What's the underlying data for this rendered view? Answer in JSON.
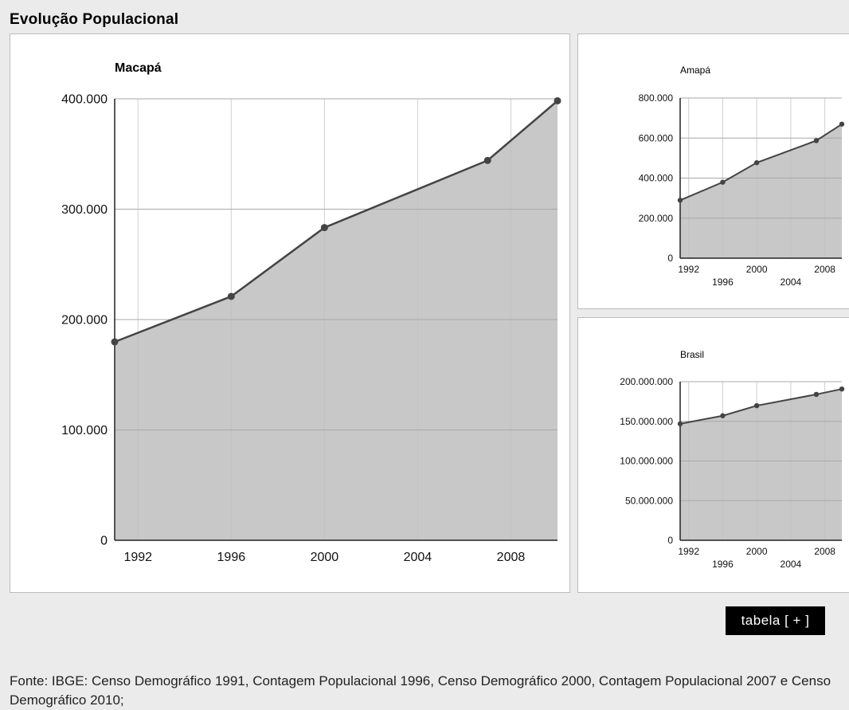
{
  "page": {
    "title": "Evolução Populacional",
    "table_button_label": "tabela  [ + ]",
    "source_note": "Fonte: IBGE: Censo Demográfico 1991, Contagem Populacional 1996, Censo Demográfico 2000, Contagem Populacional 2007 e Censo Demográfico 2010;"
  },
  "colors": {
    "area": "#c8c8c8",
    "line": "#444444",
    "grid": "#a8a8a8",
    "axis": "#222222"
  },
  "chart_data": [
    {
      "id": "macapa",
      "type": "area",
      "title": "Macapá",
      "xlabel": "",
      "ylabel": "",
      "x": [
        1991,
        1996,
        2000,
        2007,
        2010
      ],
      "values": [
        179777,
        220962,
        283308,
        344153,
        398204
      ],
      "ylim": [
        0,
        400000
      ],
      "xlim": [
        1991,
        2010
      ],
      "yticks": [
        0,
        100000,
        200000,
        300000,
        400000
      ],
      "ytick_labels": [
        "0",
        "100.000",
        "200.000",
        "300.000",
        "400.000"
      ],
      "xticks": [
        1992,
        1996,
        2000,
        2004,
        2008
      ],
      "xtick_labels": [
        "1992",
        "1996",
        "2000",
        "2004",
        "2008"
      ],
      "grid": true
    },
    {
      "id": "amapa",
      "type": "area",
      "title": "Amapá",
      "xlabel": "",
      "ylabel": "",
      "x": [
        1991,
        1996,
        2000,
        2007,
        2010
      ],
      "values": [
        289397,
        379459,
        477032,
        587311,
        669526
      ],
      "ylim": [
        0,
        800000
      ],
      "xlim": [
        1991,
        2010
      ],
      "yticks": [
        0,
        200000,
        400000,
        600000,
        800000
      ],
      "ytick_labels": [
        "0",
        "200.000",
        "400.000",
        "600.000",
        "800.000"
      ],
      "xticks": [
        1992,
        1996,
        2000,
        2004,
        2008
      ],
      "xtick_labels": [
        "1992",
        "1996",
        "2000",
        "2004",
        "2008"
      ],
      "grid": true
    },
    {
      "id": "brasil",
      "type": "area",
      "title": "Brasil",
      "xlabel": "",
      "ylabel": "",
      "x": [
        1991,
        1996,
        2000,
        2007,
        2010
      ],
      "values": [
        146825475,
        157070163,
        169799170,
        183987291,
        190755799
      ],
      "ylim": [
        0,
        200000000
      ],
      "xlim": [
        1991,
        2010
      ],
      "yticks": [
        0,
        50000000,
        100000000,
        150000000,
        200000000
      ],
      "ytick_labels": [
        "0",
        "50.000.000",
        "100.000.000",
        "150.000.000",
        "200.000.000"
      ],
      "xticks": [
        1992,
        1996,
        2000,
        2004,
        2008
      ],
      "xtick_labels": [
        "1992",
        "1996",
        "2000",
        "2004",
        "2008"
      ],
      "grid": true
    }
  ]
}
